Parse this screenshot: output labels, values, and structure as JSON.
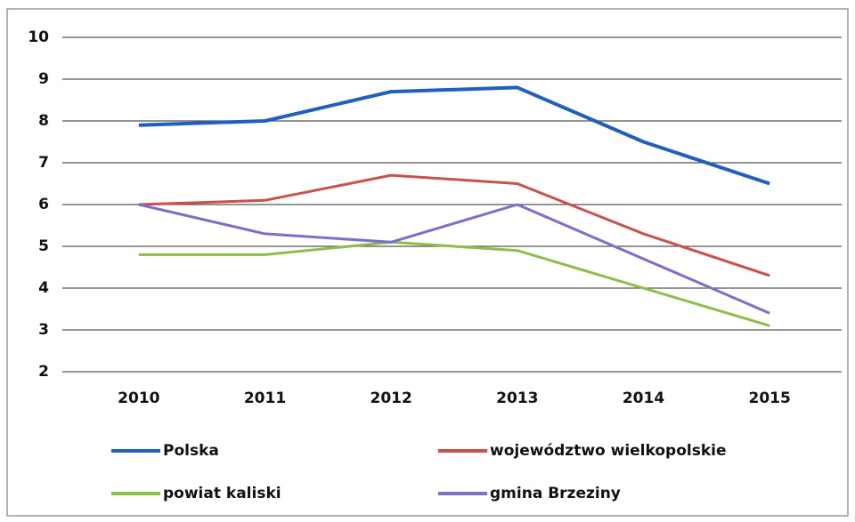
{
  "chart_data": {
    "type": "line",
    "categories": [
      "2010",
      "2011",
      "2012",
      "2013",
      "2014",
      "2015"
    ],
    "series": [
      {
        "name": "Polska",
        "color": "#1f5fbf",
        "values": [
          7.9,
          8.0,
          8.7,
          8.8,
          7.5,
          6.5
        ]
      },
      {
        "name": "województwo wielkopolskie",
        "color": "#c9504b",
        "values": [
          6.0,
          6.1,
          6.7,
          6.5,
          5.3,
          4.3
        ]
      },
      {
        "name": "powiat kaliski",
        "color": "#8bbf4a",
        "values": [
          4.8,
          4.8,
          5.1,
          4.9,
          4.0,
          3.1
        ]
      },
      {
        "name": "gmina Brzeziny",
        "color": "#7a6fc9",
        "values": [
          6.0,
          5.3,
          5.1,
          6.0,
          4.7,
          3.4
        ]
      }
    ],
    "ylim": [
      2,
      10
    ],
    "yticks": [
      2,
      3,
      4,
      5,
      6,
      7,
      8,
      9,
      10
    ],
    "grid": true
  }
}
